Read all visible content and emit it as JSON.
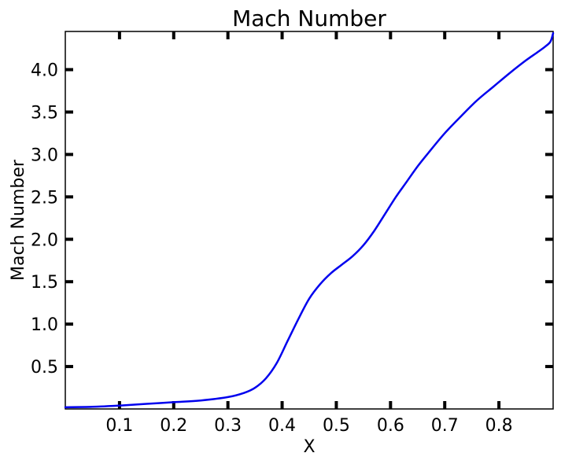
{
  "chart_data": {
    "type": "line",
    "title": "Mach Number",
    "xlabel": "X",
    "ylabel": "Mach Number",
    "xlim": [
      0.0,
      0.9
    ],
    "ylim": [
      0.0,
      4.45
    ],
    "grid": false,
    "xticks": [
      0.1,
      0.2,
      0.3,
      0.4,
      0.5,
      0.6,
      0.7,
      0.8
    ],
    "xtick_labels": [
      "0.1",
      "0.2",
      "0.3",
      "0.4",
      "0.5",
      "0.6",
      "0.7",
      "0.8"
    ],
    "yticks": [
      0.5,
      1.0,
      1.5,
      2.0,
      2.5,
      3.0,
      3.5,
      4.0
    ],
    "ytick_labels": [
      "0.5",
      "1.0",
      "1.5",
      "2.0",
      "2.5",
      "3.0",
      "3.5",
      "4.0"
    ],
    "series": [
      {
        "color": "#0000ee",
        "x": [
          0.0,
          0.05,
          0.1,
          0.15,
          0.2,
          0.25,
          0.3,
          0.33,
          0.35,
          0.37,
          0.39,
          0.41,
          0.43,
          0.45,
          0.47,
          0.49,
          0.51,
          0.53,
          0.55,
          0.57,
          0.59,
          0.61,
          0.63,
          0.65,
          0.67,
          0.7,
          0.73,
          0.76,
          0.79,
          0.82,
          0.85,
          0.87,
          0.885,
          0.895,
          0.9
        ],
        "y": [
          0.02,
          0.025,
          0.04,
          0.06,
          0.08,
          0.1,
          0.14,
          0.19,
          0.25,
          0.36,
          0.54,
          0.8,
          1.06,
          1.3,
          1.47,
          1.6,
          1.7,
          1.8,
          1.93,
          2.1,
          2.3,
          2.5,
          2.68,
          2.86,
          3.02,
          3.25,
          3.45,
          3.64,
          3.8,
          3.96,
          4.11,
          4.2,
          4.27,
          4.33,
          4.43
        ]
      }
    ]
  }
}
